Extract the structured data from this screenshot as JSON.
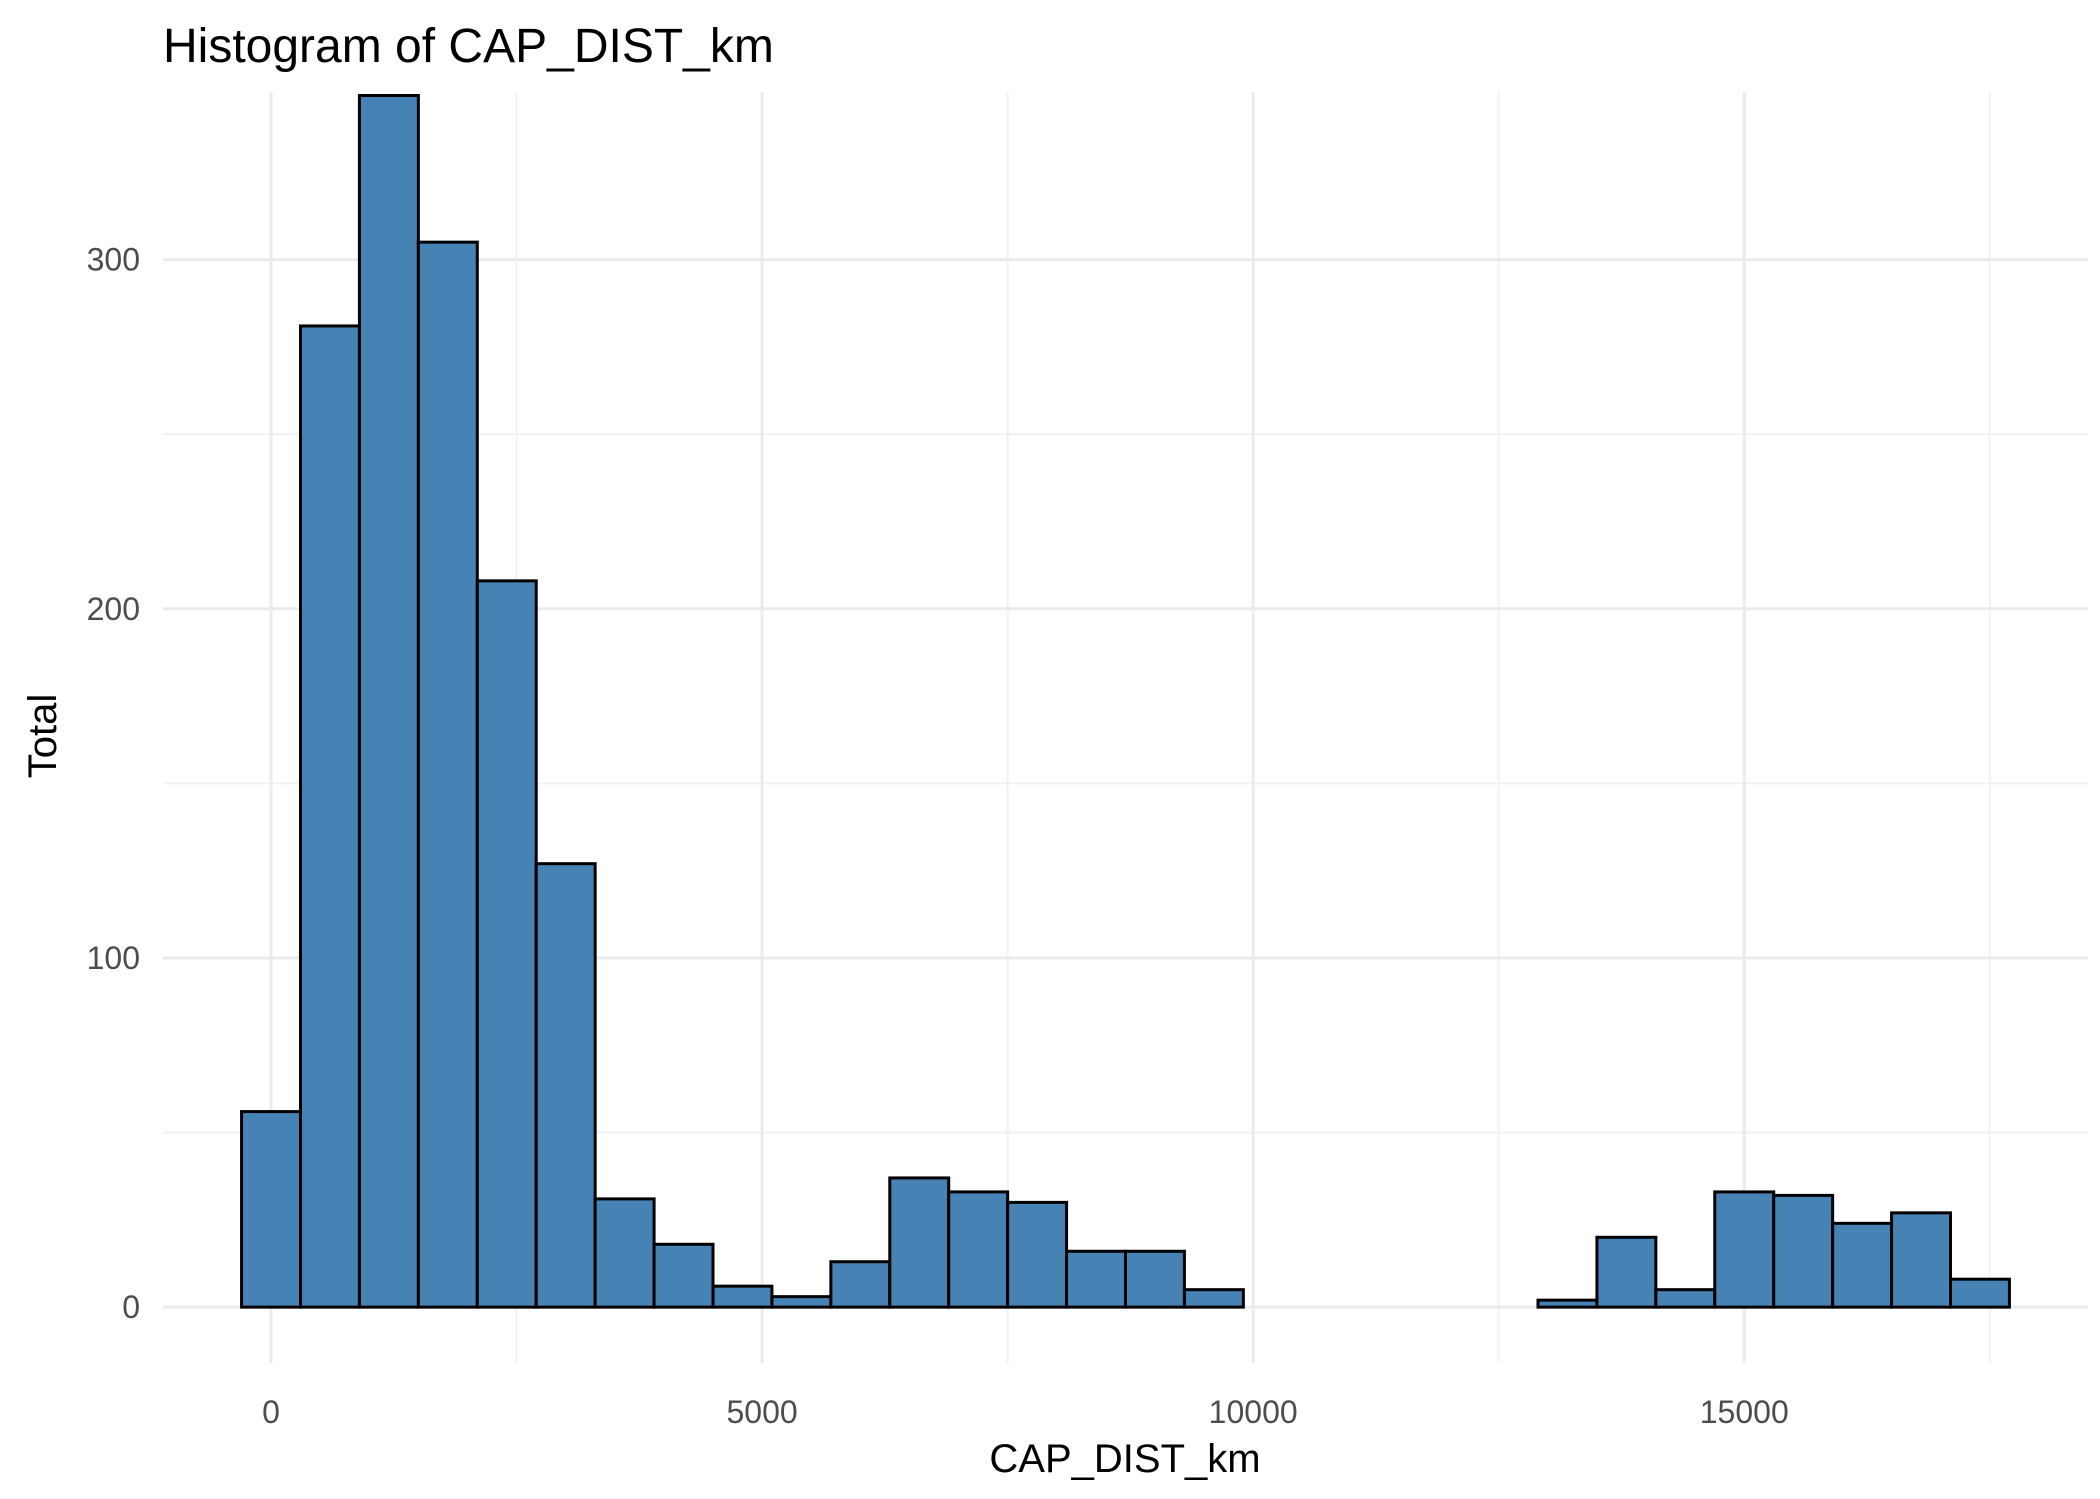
{
  "chart_data": {
    "type": "histogram",
    "title": "Histogram of  CAP_DIST_km",
    "xlabel": "CAP_DIST_km",
    "ylabel": "Total",
    "bar_color": "#4682B4",
    "bar_outline": "#000000",
    "bin_width": 600,
    "bin_start": -300,
    "xlim": [
      -1100,
      18500
    ],
    "ylim": [
      -16,
      348
    ],
    "x_ticks": [
      0,
      5000,
      10000,
      15000
    ],
    "x_minor_ticks": [
      2500,
      7500,
      12500,
      17500
    ],
    "y_ticks": [
      0,
      100,
      200,
      300
    ],
    "y_minor_ticks": [
      50,
      150,
      250
    ],
    "grid": true,
    "values": [
      56,
      281,
      347,
      305,
      208,
      127,
      31,
      18,
      6,
      3,
      13,
      37,
      33,
      30,
      16,
      16,
      5,
      0,
      0,
      0,
      0,
      0,
      2,
      20,
      5,
      33,
      32,
      24,
      27,
      8
    ]
  }
}
